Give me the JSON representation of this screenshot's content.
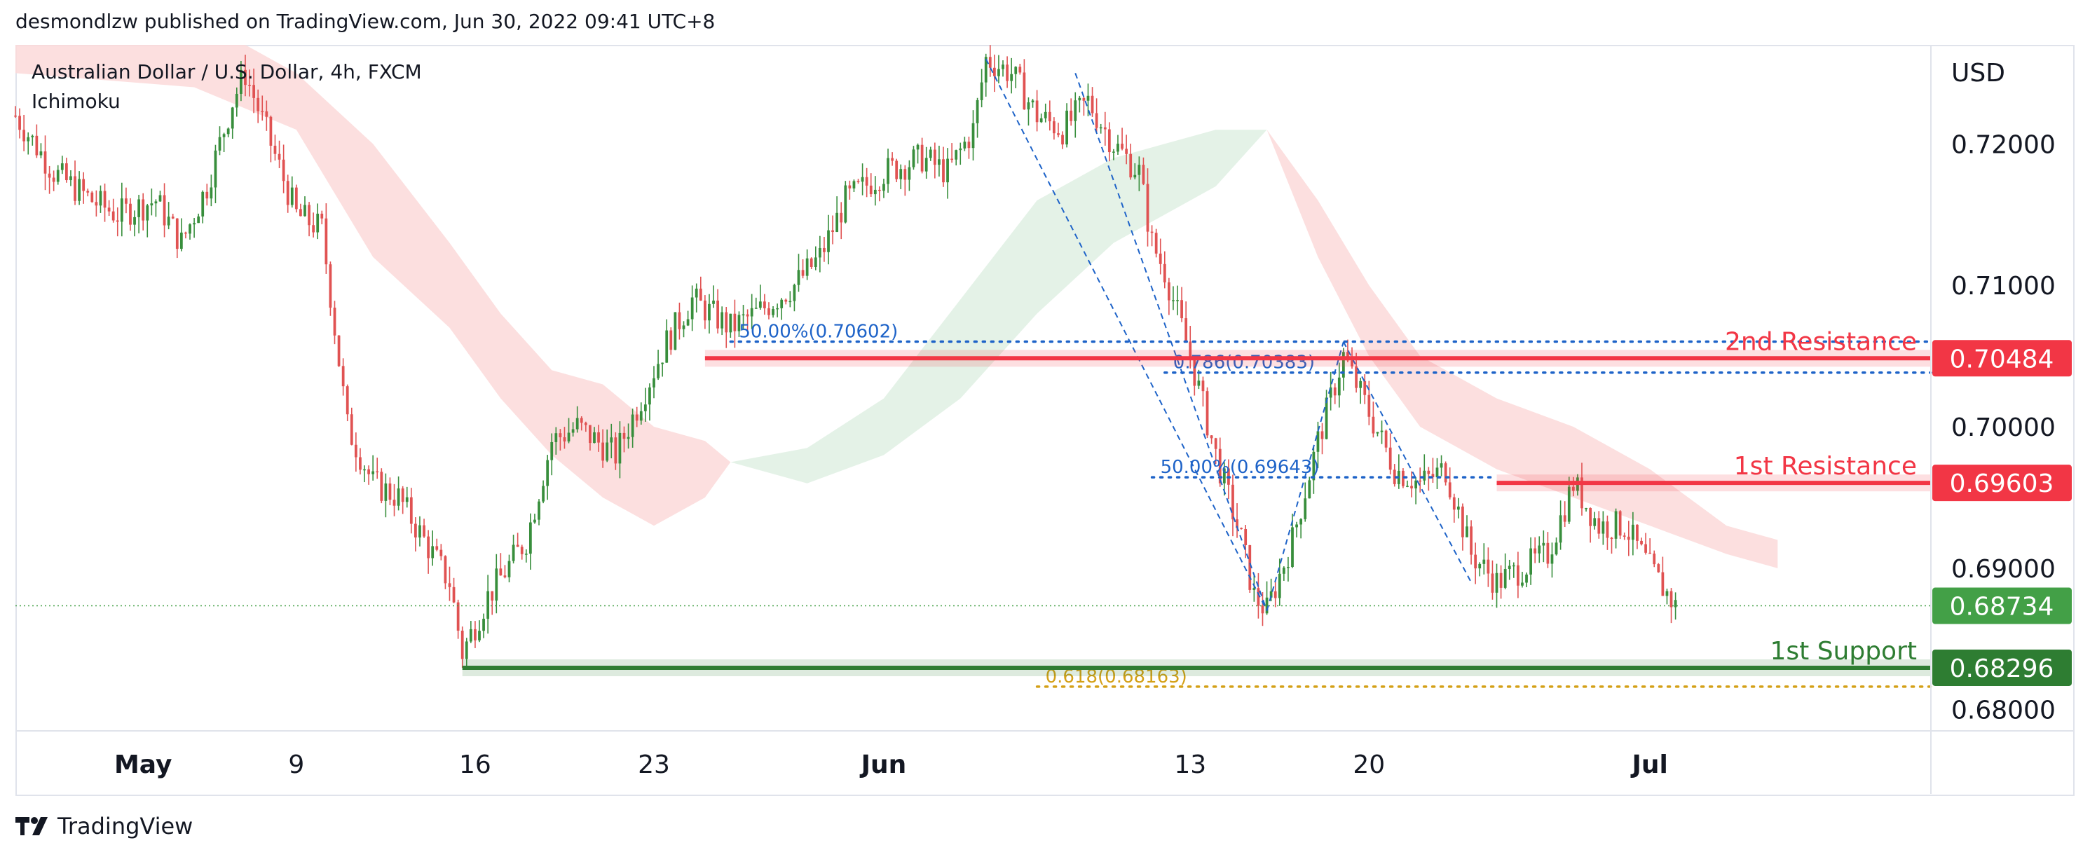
{
  "header": {
    "publisher_line": "desmondlzw published on TradingView.com, Jun 30, 2022 09:41 UTC+8"
  },
  "footer": {
    "brand": "TradingView"
  },
  "colors": {
    "up": "#26a69a",
    "down": "#ef5350",
    "candle_up": "#388e3c",
    "candle_down": "#e05252",
    "resistance": "#f23645",
    "support": "#2e7d32",
    "fib_blue": "#1e63c8",
    "fib_gold": "#d4a017",
    "cloud_red": "#fbd9d9",
    "cloud_green": "#dff0e3",
    "current_price": "#43a047"
  },
  "chart_data": {
    "type": "candlestick",
    "symbol_title": "Australian Dollar / U.S. Dollar, 4h, FXCM",
    "indicator": "Ichimoku",
    "currency": "USD",
    "y_ticks": [
      "0.68000",
      "0.69000",
      "0.70000",
      "0.71000",
      "0.72000"
    ],
    "y_ticks_values": [
      0.68,
      0.69,
      0.7,
      0.71,
      0.72
    ],
    "x_ticks": [
      {
        "label": "May",
        "t": 2
      },
      {
        "label": "9",
        "t": 8
      },
      {
        "label": "16",
        "t": 15
      },
      {
        "label": "23",
        "t": 22
      },
      {
        "label": "Jun",
        "t": 31
      },
      {
        "label": "13",
        "t": 43
      },
      {
        "label": "20",
        "t": 50
      },
      {
        "label": "Jul",
        "t": 61
      }
    ],
    "x_range": [
      -3,
      72
    ],
    "y_range": [
      0.6785,
      0.727
    ],
    "price_path": [
      [
        -3,
        0.722
      ],
      [
        -1.5,
        0.718
      ],
      [
        0,
        0.716
      ],
      [
        1,
        0.715
      ],
      [
        2.5,
        0.716
      ],
      [
        3.5,
        0.713
      ],
      [
        4.5,
        0.717
      ],
      [
        5.5,
        0.723
      ],
      [
        6,
        0.725
      ],
      [
        7,
        0.72
      ],
      [
        8,
        0.715
      ],
      [
        9,
        0.714
      ],
      [
        10,
        0.7
      ],
      [
        11,
        0.696
      ],
      [
        12,
        0.695
      ],
      [
        13,
        0.692
      ],
      [
        14,
        0.689
      ],
      [
        14.5,
        0.684
      ],
      [
        15.5,
        0.688
      ],
      [
        17,
        0.692
      ],
      [
        18,
        0.699
      ],
      [
        19,
        0.7
      ],
      [
        20.5,
        0.698
      ],
      [
        21.5,
        0.702
      ],
      [
        22.5,
        0.706
      ],
      [
        23.5,
        0.709
      ],
      [
        25,
        0.707
      ],
      [
        26,
        0.708
      ],
      [
        27.5,
        0.71
      ],
      [
        28.5,
        0.712
      ],
      [
        29.5,
        0.716
      ],
      [
        31,
        0.718
      ],
      [
        32.5,
        0.719
      ],
      [
        33.5,
        0.718
      ],
      [
        34.5,
        0.721
      ],
      [
        35,
        0.726
      ],
      [
        36,
        0.725
      ],
      [
        37,
        0.722
      ],
      [
        38,
        0.721
      ],
      [
        39,
        0.723
      ],
      [
        40,
        0.72
      ],
      [
        41,
        0.718
      ],
      [
        41.5,
        0.713
      ],
      [
        42,
        0.711
      ],
      [
        43,
        0.705
      ],
      [
        44,
        0.698
      ],
      [
        45,
        0.692
      ],
      [
        45.5,
        0.688
      ],
      [
        46,
        0.687
      ],
      [
        47,
        0.692
      ],
      [
        48,
        0.699
      ],
      [
        49,
        0.705
      ],
      [
        50,
        0.701
      ],
      [
        51,
        0.697
      ],
      [
        52,
        0.696
      ],
      [
        53,
        0.697
      ],
      [
        54,
        0.691
      ],
      [
        55,
        0.689
      ],
      [
        56,
        0.69
      ],
      [
        57,
        0.691
      ],
      [
        58,
        0.696
      ],
      [
        59,
        0.693
      ],
      [
        60,
        0.693
      ],
      [
        61,
        0.69
      ],
      [
        62,
        0.6873
      ]
    ],
    "cloud_red_upper": [
      [
        -3,
        0.73
      ],
      [
        4,
        0.729
      ],
      [
        8,
        0.725
      ],
      [
        11,
        0.72
      ],
      [
        14,
        0.713
      ],
      [
        16,
        0.708
      ],
      [
        18,
        0.704
      ],
      [
        20,
        0.703
      ],
      [
        22,
        0.7
      ],
      [
        24,
        0.699
      ],
      [
        25,
        0.6975
      ]
    ],
    "cloud_red_lower": [
      [
        -3,
        0.725
      ],
      [
        4,
        0.724
      ],
      [
        8,
        0.721
      ],
      [
        11,
        0.712
      ],
      [
        14,
        0.707
      ],
      [
        16,
        0.702
      ],
      [
        18,
        0.698
      ],
      [
        20,
        0.695
      ],
      [
        22,
        0.693
      ],
      [
        24,
        0.695
      ],
      [
        25,
        0.6975
      ]
    ],
    "cloud_green_upper": [
      [
        25,
        0.6975
      ],
      [
        28,
        0.6985
      ],
      [
        31,
        0.702
      ],
      [
        34,
        0.709
      ],
      [
        37,
        0.716
      ],
      [
        40,
        0.719
      ],
      [
        42,
        0.72
      ],
      [
        44,
        0.721
      ],
      [
        46,
        0.721
      ]
    ],
    "cloud_green_lower": [
      [
        25,
        0.6975
      ],
      [
        28,
        0.696
      ],
      [
        31,
        0.698
      ],
      [
        34,
        0.702
      ],
      [
        37,
        0.708
      ],
      [
        40,
        0.713
      ],
      [
        42,
        0.715
      ],
      [
        44,
        0.717
      ],
      [
        46,
        0.721
      ]
    ],
    "cloud_red2_upper": [
      [
        46,
        0.721
      ],
      [
        48,
        0.716
      ],
      [
        50,
        0.71
      ],
      [
        52,
        0.705
      ],
      [
        55,
        0.702
      ],
      [
        58,
        0.7
      ],
      [
        61,
        0.697
      ],
      [
        64,
        0.693
      ],
      [
        66,
        0.692
      ]
    ],
    "cloud_red2_lower": [
      [
        46,
        0.721
      ],
      [
        48,
        0.712
      ],
      [
        50,
        0.705
      ],
      [
        52,
        0.7
      ],
      [
        55,
        0.697
      ],
      [
        58,
        0.695
      ],
      [
        61,
        0.693
      ],
      [
        64,
        0.691
      ],
      [
        66,
        0.69
      ]
    ],
    "levels": [
      {
        "name": "2nd Resistance",
        "price": 0.70484,
        "label": "0.70484",
        "t_start": 24,
        "color": "resistance"
      },
      {
        "name": "1st Resistance",
        "price": 0.69603,
        "label": "0.69603",
        "t_start": 55,
        "color": "resistance"
      },
      {
        "name": "1st Support",
        "price": 0.68296,
        "label": "0.68296",
        "t_start": 14.5,
        "color": "support"
      }
    ],
    "level_labels": {
      "r2": "2nd Resistance",
      "r1": "1st Resistance",
      "s1": "1st Support"
    },
    "current_price": {
      "price": 0.68734,
      "label": "0.68734"
    },
    "fib_annotations": [
      {
        "text": "50.00%(0.70602)",
        "price": 0.70602,
        "t_start": 25,
        "t_end": 72,
        "color": "fib_blue"
      },
      {
        "text": "0.786(0.70383)",
        "price": 0.70383,
        "t_start": 42,
        "t_end": 72,
        "color": "fib_blue"
      },
      {
        "text": "50.00%(0.69643)",
        "price": 0.69643,
        "t_start": 41.5,
        "t_end": 55,
        "color": "fib_blue"
      },
      {
        "text": "0.618(0.68163)",
        "price": 0.68163,
        "t_start": 37,
        "t_end": 72,
        "color": "fib_gold"
      }
    ],
    "harmonic_lines": [
      [
        [
          35,
          0.726
        ],
        [
          46,
          0.687
        ]
      ],
      [
        [
          38.5,
          0.725
        ],
        [
          46,
          0.687
        ]
      ],
      [
        [
          46,
          0.687
        ],
        [
          49,
          0.706
        ]
      ],
      [
        [
          49,
          0.706
        ],
        [
          54,
          0.689
        ]
      ]
    ]
  }
}
